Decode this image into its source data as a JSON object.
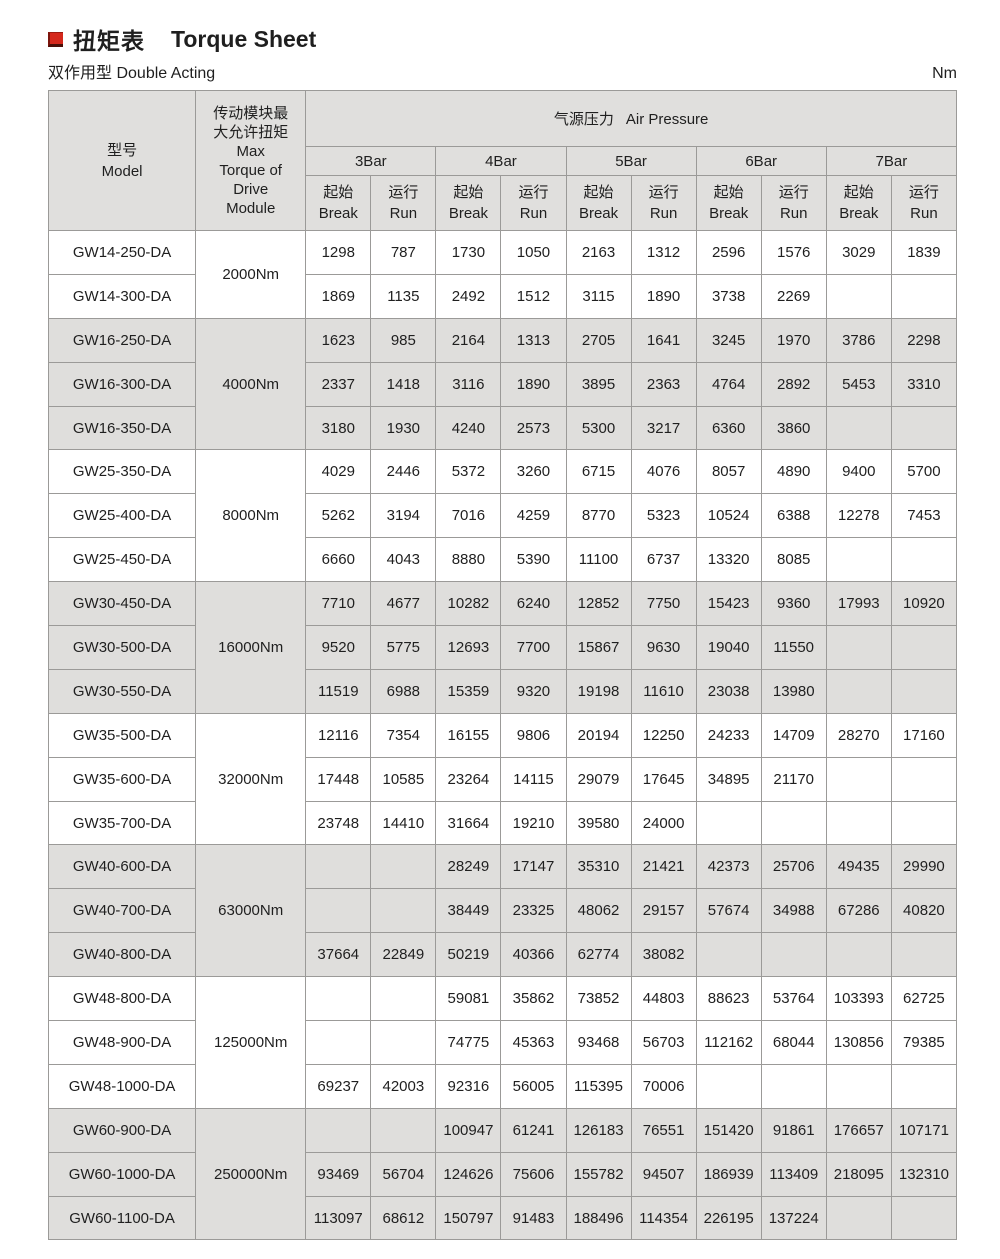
{
  "page": {
    "title_zh": "扭矩表",
    "title_en": "Torque Sheet",
    "subtitle_zh": "双作用型",
    "subtitle_en": "Double Acting",
    "unit": "Nm"
  },
  "colors": {
    "accent_red": "#d5281c",
    "header_bg": "#e0dfdd",
    "shaded_row_bg": "#dfdedc",
    "border": "#9b9a98"
  },
  "table": {
    "header": {
      "model_zh": "型号",
      "model_en": "Model",
      "torque_lines": [
        "传动模块最",
        "大允许扭矩",
        "Max",
        "Torque of",
        "Drive",
        "Module"
      ],
      "air_pressure_zh": "气源压力",
      "air_pressure_en": "Air Pressure",
      "bars": [
        "3Bar",
        "4Bar",
        "5Bar",
        "6Bar",
        "7Bar"
      ],
      "break_zh": "起始",
      "break_en": "Break",
      "run_zh": "运行",
      "run_en": "Run"
    },
    "groups": [
      {
        "torque": "2000Nm",
        "shaded": false,
        "rows": [
          {
            "model": "GW14-250-DA",
            "values": [
              "1298",
              "787",
              "1730",
              "1050",
              "2163",
              "1312",
              "2596",
              "1576",
              "3029",
              "1839"
            ]
          },
          {
            "model": "GW14-300-DA",
            "values": [
              "1869",
              "1135",
              "2492",
              "1512",
              "3115",
              "1890",
              "3738",
              "2269",
              "",
              ""
            ]
          }
        ]
      },
      {
        "torque": "4000Nm",
        "shaded": true,
        "rows": [
          {
            "model": "GW16-250-DA",
            "values": [
              "1623",
              "985",
              "2164",
              "1313",
              "2705",
              "1641",
              "3245",
              "1970",
              "3786",
              "2298"
            ]
          },
          {
            "model": "GW16-300-DA",
            "values": [
              "2337",
              "1418",
              "3116",
              "1890",
              "3895",
              "2363",
              "4764",
              "2892",
              "5453",
              "3310"
            ]
          },
          {
            "model": "GW16-350-DA",
            "values": [
              "3180",
              "1930",
              "4240",
              "2573",
              "5300",
              "3217",
              "6360",
              "3860",
              "",
              ""
            ]
          }
        ]
      },
      {
        "torque": "8000Nm",
        "shaded": false,
        "rows": [
          {
            "model": "GW25-350-DA",
            "values": [
              "4029",
              "2446",
              "5372",
              "3260",
              "6715",
              "4076",
              "8057",
              "4890",
              "9400",
              "5700"
            ]
          },
          {
            "model": "GW25-400-DA",
            "values": [
              "5262",
              "3194",
              "7016",
              "4259",
              "8770",
              "5323",
              "10524",
              "6388",
              "12278",
              "7453"
            ]
          },
          {
            "model": "GW25-450-DA",
            "values": [
              "6660",
              "4043",
              "8880",
              "5390",
              "11100",
              "6737",
              "13320",
              "8085",
              "",
              ""
            ]
          }
        ]
      },
      {
        "torque": "16000Nm",
        "shaded": true,
        "rows": [
          {
            "model": "GW30-450-DA",
            "values": [
              "7710",
              "4677",
              "10282",
              "6240",
              "12852",
              "7750",
              "15423",
              "9360",
              "17993",
              "10920"
            ]
          },
          {
            "model": "GW30-500-DA",
            "values": [
              "9520",
              "5775",
              "12693",
              "7700",
              "15867",
              "9630",
              "19040",
              "11550",
              "",
              ""
            ]
          },
          {
            "model": "GW30-550-DA",
            "values": [
              "11519",
              "6988",
              "15359",
              "9320",
              "19198",
              "11610",
              "23038",
              "13980",
              "",
              ""
            ]
          }
        ]
      },
      {
        "torque": "32000Nm",
        "shaded": false,
        "rows": [
          {
            "model": "GW35-500-DA",
            "values": [
              "12116",
              "7354",
              "16155",
              "9806",
              "20194",
              "12250",
              "24233",
              "14709",
              "28270",
              "17160"
            ]
          },
          {
            "model": "GW35-600-DA",
            "values": [
              "17448",
              "10585",
              "23264",
              "14115",
              "29079",
              "17645",
              "34895",
              "21170",
              "",
              ""
            ]
          },
          {
            "model": "GW35-700-DA",
            "values": [
              "23748",
              "14410",
              "31664",
              "19210",
              "39580",
              "24000",
              "",
              "",
              "",
              ""
            ]
          }
        ]
      },
      {
        "torque": "63000Nm",
        "shaded": true,
        "rows": [
          {
            "model": "GW40-600-DA",
            "values": [
              "",
              "",
              "28249",
              "17147",
              "35310",
              "21421",
              "42373",
              "25706",
              "49435",
              "29990"
            ]
          },
          {
            "model": "GW40-700-DA",
            "values": [
              "",
              "",
              "38449",
              "23325",
              "48062",
              "29157",
              "57674",
              "34988",
              "67286",
              "40820"
            ]
          },
          {
            "model": "GW40-800-DA",
            "values": [
              "37664",
              "22849",
              "50219",
              "40366",
              "62774",
              "38082",
              "",
              "",
              "",
              ""
            ]
          }
        ]
      },
      {
        "torque": "125000Nm",
        "shaded": false,
        "rows": [
          {
            "model": "GW48-800-DA",
            "values": [
              "",
              "",
              "59081",
              "35862",
              "73852",
              "44803",
              "88623",
              "53764",
              "103393",
              "62725"
            ]
          },
          {
            "model": "GW48-900-DA",
            "values": [
              "",
              "",
              "74775",
              "45363",
              "93468",
              "56703",
              "112162",
              "68044",
              "130856",
              "79385"
            ]
          },
          {
            "model": "GW48-1000-DA",
            "values": [
              "69237",
              "42003",
              "92316",
              "56005",
              "115395",
              "70006",
              "",
              "",
              "",
              ""
            ]
          }
        ]
      },
      {
        "torque": "250000Nm",
        "shaded": true,
        "rows": [
          {
            "model": "GW60-900-DA",
            "values": [
              "",
              "",
              "100947",
              "61241",
              "126183",
              "76551",
              "151420",
              "91861",
              "176657",
              "107171"
            ]
          },
          {
            "model": "GW60-1000-DA",
            "values": [
              "93469",
              "56704",
              "124626",
              "75606",
              "155782",
              "94507",
              "186939",
              "113409",
              "218095",
              "132310"
            ]
          },
          {
            "model": "GW60-1100-DA",
            "values": [
              "113097",
              "68612",
              "150797",
              "91483",
              "188496",
              "114354",
              "226195",
              "137224",
              "",
              ""
            ]
          }
        ]
      }
    ]
  }
}
